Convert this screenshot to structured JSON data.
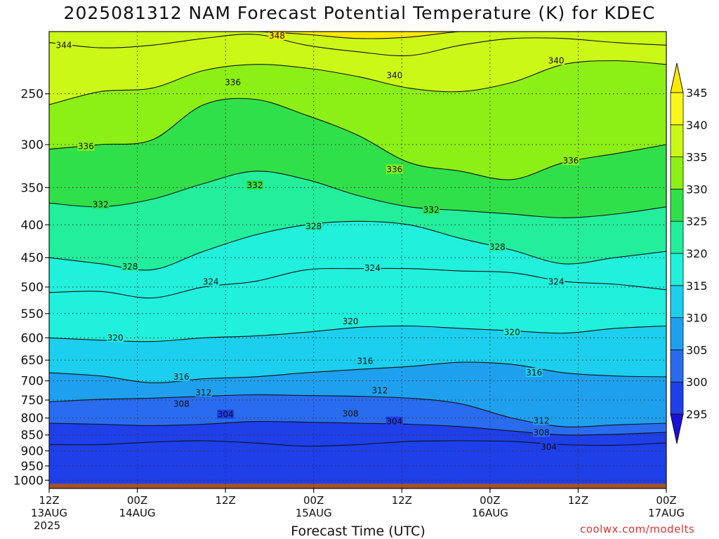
{
  "title": "2025081312 NAM Forecast Potential Temperature (K) for KDEC",
  "credit": "coolwx.com/modelts",
  "chart_data": {
    "type": "heatmap",
    "title": "2025081312 NAM Forecast Potential Temperature (K) for KDEC",
    "xlabel": "Forecast Time (UTC)",
    "ylabel": "",
    "y_scale": "log-pressure",
    "y_inverted": true,
    "ylim": [
      1030,
      200
    ],
    "xlim": [
      0,
      84
    ],
    "grid": true,
    "legend": "right",
    "y_ticks": [
      250,
      300,
      350,
      400,
      450,
      500,
      550,
      600,
      650,
      700,
      750,
      800,
      850,
      900,
      950,
      1000
    ],
    "x_ticks": [
      {
        "hour": 0,
        "line1": "12Z",
        "line2": "13AUG",
        "line3": "2025"
      },
      {
        "hour": 12,
        "line1": "00Z",
        "line2": "14AUG",
        "line3": ""
      },
      {
        "hour": 24,
        "line1": "12Z",
        "line2": "",
        "line3": ""
      },
      {
        "hour": 36,
        "line1": "00Z",
        "line2": "15AUG",
        "line3": ""
      },
      {
        "hour": 48,
        "line1": "12Z",
        "line2": "",
        "line3": ""
      },
      {
        "hour": 60,
        "line1": "00Z",
        "line2": "16AUG",
        "line3": ""
      },
      {
        "hour": 72,
        "line1": "12Z",
        "line2": "",
        "line3": ""
      },
      {
        "hour": 84,
        "line1": "00Z",
        "line2": "17AUG",
        "line3": ""
      }
    ],
    "colorbar": {
      "levels": [
        295,
        300,
        305,
        310,
        315,
        320,
        325,
        330,
        335,
        340,
        345
      ],
      "colors": [
        "#1a10d8",
        "#1f3fe8",
        "#2a6cf0",
        "#1fa0ef",
        "#1ccfee",
        "#20f0dc",
        "#22ee9c",
        "#30e04a",
        "#8cf016",
        "#ccf818",
        "#f7f71a"
      ],
      "low_color": "#1208b8",
      "high_color": "#ffe800"
    },
    "contour_interval": 4,
    "contours": [
      {
        "level": 304,
        "p": [
          880,
          880,
          872,
          868,
          875,
          885,
          880,
          870,
          868,
          870,
          880,
          882,
          875
        ]
      },
      {
        "level": 308,
        "p": [
          815,
          818,
          822,
          818,
          810,
          812,
          815,
          818,
          825,
          838,
          850,
          848,
          842
        ]
      },
      {
        "level": 312,
        "p": [
          755,
          748,
          745,
          740,
          736,
          738,
          740,
          745,
          760,
          800,
          825,
          820,
          815
        ]
      },
      {
        "level": 316,
        "p": [
          680,
          688,
          705,
          695,
          690,
          680,
          672,
          665,
          655,
          660,
          680,
          688,
          690
        ]
      },
      {
        "level": 320,
        "p": [
          600,
          605,
          608,
          600,
          596,
          588,
          578,
          575,
          580,
          585,
          590,
          580,
          575
        ]
      },
      {
        "level": 324,
        "p": [
          510,
          508,
          520,
          500,
          490,
          470,
          468,
          468,
          472,
          475,
          490,
          495,
          505
        ]
      },
      {
        "level": 328,
        "p": [
          450,
          460,
          470,
          440,
          415,
          400,
          395,
          400,
          420,
          438,
          460,
          450,
          440
        ]
      },
      {
        "level": 332,
        "p": [
          370,
          375,
          365,
          345,
          330,
          340,
          360,
          375,
          380,
          385,
          390,
          385,
          375
        ]
      },
      {
        "level": 336,
        "p": [
          305,
          300,
          295,
          260,
          255,
          270,
          290,
          320,
          330,
          340,
          320,
          310,
          300
        ]
      },
      {
        "level": 340,
        "p": [
          260,
          248,
          245,
          230,
          225,
          228,
          235,
          245,
          248,
          240,
          225,
          222,
          225
        ]
      },
      {
        "level": 344,
        "p": [
          208,
          212,
          210,
          205,
          202,
          210,
          215,
          218,
          210,
          205,
          205,
          208,
          210
        ]
      },
      {
        "level": 348,
        "p": [
          200,
          200,
          200,
          200,
          200,
          202,
          205,
          204,
          200,
          200,
          200,
          200,
          200
        ]
      }
    ],
    "contour_hours": [
      0,
      7,
      14,
      21,
      28,
      35,
      42,
      49,
      56,
      63,
      70,
      77,
      84
    ],
    "contour_labels": [
      {
        "level": 344,
        "hour": 2,
        "p": 210
      },
      {
        "level": 348,
        "hour": 31,
        "p": 203
      },
      {
        "level": 340,
        "hour": 47,
        "p": 234
      },
      {
        "level": 340,
        "hour": 69,
        "p": 222
      },
      {
        "level": 336,
        "hour": 5,
        "p": 302
      },
      {
        "level": 336,
        "hour": 25,
        "p": 240
      },
      {
        "level": 336,
        "hour": 47,
        "p": 328
      },
      {
        "level": 336,
        "hour": 71,
        "p": 318
      },
      {
        "level": 332,
        "hour": 7,
        "p": 372
      },
      {
        "level": 332,
        "hour": 28,
        "p": 347
      },
      {
        "level": 332,
        "hour": 52,
        "p": 379
      },
      {
        "level": 328,
        "hour": 11,
        "p": 465
      },
      {
        "level": 328,
        "hour": 36,
        "p": 402
      },
      {
        "level": 328,
        "hour": 61,
        "p": 433
      },
      {
        "level": 324,
        "hour": 22,
        "p": 491
      },
      {
        "level": 324,
        "hour": 44,
        "p": 467
      },
      {
        "level": 324,
        "hour": 69,
        "p": 491
      },
      {
        "level": 320,
        "hour": 9,
        "p": 600
      },
      {
        "level": 320,
        "hour": 41,
        "p": 566
      },
      {
        "level": 320,
        "hour": 63,
        "p": 588
      },
      {
        "level": 316,
        "hour": 18,
        "p": 690
      },
      {
        "level": 316,
        "hour": 43,
        "p": 652
      },
      {
        "level": 316,
        "hour": 66,
        "p": 680
      },
      {
        "level": 312,
        "hour": 21,
        "p": 730
      },
      {
        "level": 312,
        "hour": 45,
        "p": 725
      },
      {
        "level": 312,
        "hour": 67,
        "p": 808
      },
      {
        "level": 308,
        "hour": 18,
        "p": 760
      },
      {
        "level": 308,
        "hour": 41,
        "p": 788
      },
      {
        "level": 308,
        "hour": 67,
        "p": 843
      },
      {
        "level": 304,
        "hour": 24,
        "p": 790
      },
      {
        "level": 304,
        "hour": 47,
        "p": 810
      },
      {
        "level": 304,
        "hour": 68,
        "p": 888
      }
    ],
    "ground_color": "#a0522d"
  }
}
